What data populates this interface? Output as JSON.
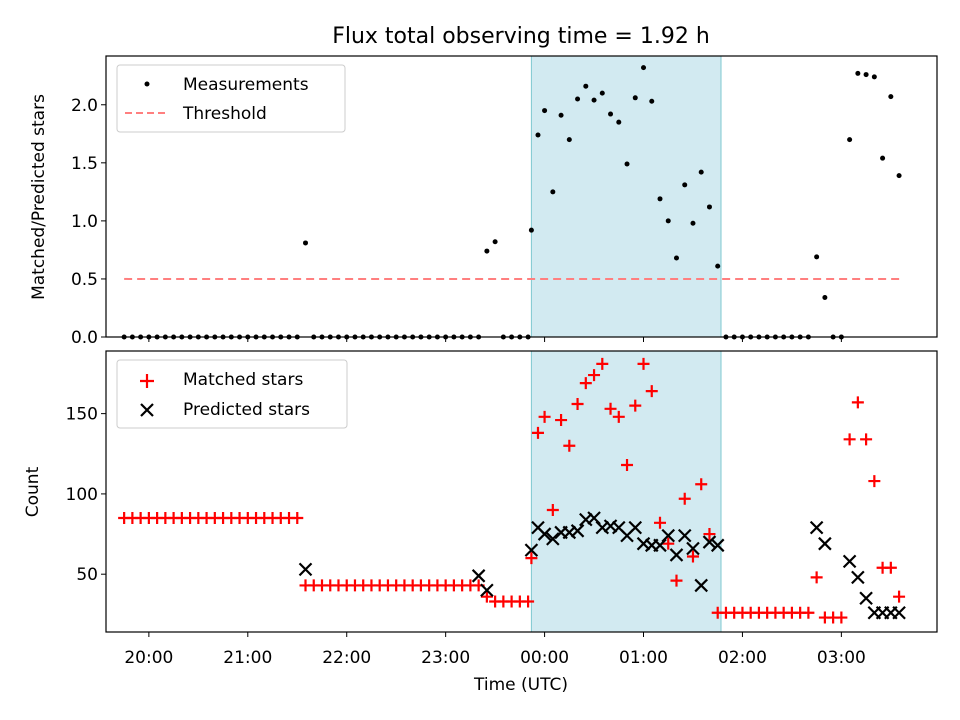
{
  "title": "Flux total observing time = 1.92 h",
  "colors": {
    "measurement": "#000000",
    "threshold": "#ff7f7f",
    "matched": "#ff0000",
    "predicted": "#000000",
    "shade": "#add8e6"
  },
  "chart_data": [
    {
      "type": "scatter",
      "ylabel": "Matched/Predicted stars",
      "xlabel": "",
      "xlim": [
        "19:34",
        "03:58"
      ],
      "ylim": [
        0,
        2.42
      ],
      "yticks": [
        0.0,
        0.5,
        1.0,
        1.5,
        2.0
      ],
      "ytick_labels": [
        "0.0",
        "0.5",
        "1.0",
        "1.5",
        "2.0"
      ],
      "xticks": [
        "20:00",
        "21:00",
        "22:00",
        "23:00",
        "00:00",
        "01:00",
        "02:00",
        "03:00"
      ],
      "shaded_interval": [
        "23:52",
        "01:47"
      ],
      "legend": {
        "position": "upper-left",
        "entries": [
          "Measurements",
          "Threshold"
        ]
      },
      "threshold": {
        "name": "Threshold",
        "value": 0.5,
        "x": [
          "19:45",
          "03:38"
        ]
      },
      "series": [
        {
          "name": "Measurements",
          "marker": "dot",
          "x": [
            "19:45",
            "19:50",
            "19:55",
            "20:00",
            "20:05",
            "20:10",
            "20:15",
            "20:20",
            "20:25",
            "20:30",
            "20:35",
            "20:40",
            "20:45",
            "20:50",
            "20:55",
            "21:00",
            "21:05",
            "21:10",
            "21:15",
            "21:20",
            "21:25",
            "21:30",
            "21:35",
            "21:40",
            "21:45",
            "21:50",
            "21:55",
            "22:00",
            "22:05",
            "22:10",
            "22:15",
            "22:20",
            "22:25",
            "22:30",
            "22:35",
            "22:40",
            "22:45",
            "22:50",
            "22:55",
            "23:00",
            "23:05",
            "23:10",
            "23:15",
            "23:20",
            "23:25",
            "23:30",
            "23:35",
            "23:40",
            "23:45",
            "23:50",
            "23:52",
            "23:56",
            "00:00",
            "00:05",
            "00:10",
            "00:15",
            "00:20",
            "00:25",
            "00:30",
            "00:35",
            "00:40",
            "00:45",
            "00:50",
            "00:55",
            "01:00",
            "01:05",
            "01:10",
            "01:15",
            "01:20",
            "01:25",
            "01:30",
            "01:35",
            "01:40",
            "01:45",
            "01:50",
            "01:55",
            "02:00",
            "02:05",
            "02:10",
            "02:15",
            "02:20",
            "02:25",
            "02:30",
            "02:35",
            "02:40",
            "02:45",
            "02:50",
            "02:55",
            "03:00",
            "03:05",
            "03:10",
            "03:15",
            "03:20",
            "03:25",
            "03:30",
            "03:35"
          ],
          "y": [
            0,
            0,
            0,
            0,
            0,
            0,
            0,
            0,
            0,
            0,
            0,
            0,
            0,
            0,
            0,
            0,
            0,
            0,
            0,
            0,
            0,
            0,
            0.81,
            0,
            0,
            0,
            0,
            0,
            0,
            0,
            0,
            0,
            0,
            0,
            0,
            0,
            0,
            0,
            0,
            0,
            0,
            0,
            0,
            0,
            0.74,
            0.82,
            0,
            0,
            0,
            0,
            0.92,
            1.74,
            1.95,
            1.25,
            1.91,
            1.7,
            2.05,
            2.16,
            2.04,
            2.1,
            1.92,
            1.85,
            1.49,
            2.06,
            2.32,
            2.03,
            1.19,
            1.0,
            0.68,
            1.31,
            0.98,
            1.42,
            1.12,
            0.61,
            0,
            0,
            0,
            0,
            0,
            0,
            0,
            0,
            0,
            0,
            0,
            0.69,
            0.34,
            0,
            0,
            1.7,
            2.27,
            2.26,
            2.24,
            1.54,
            2.07,
            1.39
          ]
        }
      ]
    },
    {
      "type": "scatter",
      "ylabel": "Count",
      "xlabel": "Time (UTC)",
      "xlim": [
        "19:34",
        "03:58"
      ],
      "ylim": [
        14,
        189
      ],
      "yticks": [
        50,
        100,
        150
      ],
      "ytick_labels": [
        "50",
        "100",
        "150"
      ],
      "xticks": [
        "20:00",
        "21:00",
        "22:00",
        "23:00",
        "00:00",
        "01:00",
        "02:00",
        "03:00"
      ],
      "xtick_labels": [
        "20:00",
        "21:00",
        "22:00",
        "23:00",
        "00:00",
        "01:00",
        "02:00",
        "03:00"
      ],
      "shaded_interval": [
        "23:52",
        "01:47"
      ],
      "legend": {
        "position": "upper-left",
        "entries": [
          "Matched stars",
          "Predicted stars"
        ]
      },
      "series": [
        {
          "name": "Matched stars",
          "marker": "plus",
          "x": [
            "19:45",
            "19:50",
            "19:55",
            "20:00",
            "20:05",
            "20:10",
            "20:15",
            "20:20",
            "20:25",
            "20:30",
            "20:35",
            "20:40",
            "20:45",
            "20:50",
            "20:55",
            "21:00",
            "21:05",
            "21:10",
            "21:15",
            "21:20",
            "21:25",
            "21:30",
            "21:35",
            "21:40",
            "21:45",
            "21:50",
            "21:55",
            "22:00",
            "22:05",
            "22:10",
            "22:15",
            "22:20",
            "22:25",
            "22:30",
            "22:35",
            "22:40",
            "22:45",
            "22:50",
            "22:55",
            "23:00",
            "23:05",
            "23:10",
            "23:15",
            "23:20",
            "23:25",
            "23:30",
            "23:35",
            "23:40",
            "23:45",
            "23:50",
            "23:52",
            "23:56",
            "00:00",
            "00:05",
            "00:10",
            "00:15",
            "00:20",
            "00:25",
            "00:30",
            "00:35",
            "00:40",
            "00:45",
            "00:50",
            "00:55",
            "01:00",
            "01:05",
            "01:10",
            "01:15",
            "01:20",
            "01:25",
            "01:30",
            "01:35",
            "01:40",
            "01:45",
            "01:50",
            "01:55",
            "02:00",
            "02:05",
            "02:10",
            "02:15",
            "02:20",
            "02:25",
            "02:30",
            "02:35",
            "02:40",
            "02:45",
            "02:50",
            "02:55",
            "03:00",
            "03:05",
            "03:10",
            "03:15",
            "03:20",
            "03:25",
            "03:30",
            "03:35"
          ],
          "y": [
            85,
            85,
            85,
            85,
            85,
            85,
            85,
            85,
            85,
            85,
            85,
            85,
            85,
            85,
            85,
            85,
            85,
            85,
            85,
            85,
            85,
            85,
            43,
            43,
            43,
            43,
            43,
            43,
            43,
            43,
            43,
            43,
            43,
            43,
            43,
            43,
            43,
            43,
            43,
            43,
            43,
            43,
            43,
            43,
            36,
            33,
            33,
            33,
            33,
            33,
            60,
            138,
            148,
            90,
            146,
            130,
            156,
            169,
            174,
            181,
            153,
            148,
            118,
            155,
            181,
            164,
            82,
            69,
            46,
            97,
            61,
            106,
            75,
            26,
            26,
            26,
            26,
            26,
            26,
            26,
            26,
            26,
            26,
            26,
            26,
            48,
            23,
            23,
            23,
            134,
            157,
            134,
            108,
            54,
            54,
            36
          ]
        },
        {
          "name": "Predicted stars",
          "marker": "x",
          "x": [
            "21:35",
            "23:20",
            "23:25",
            "23:52",
            "23:56",
            "00:00",
            "00:05",
            "00:10",
            "00:15",
            "00:20",
            "00:25",
            "00:30",
            "00:35",
            "00:40",
            "00:45",
            "00:50",
            "00:55",
            "01:00",
            "01:05",
            "01:10",
            "01:15",
            "01:20",
            "01:25",
            "01:30",
            "01:35",
            "01:40",
            "01:45",
            "02:45",
            "02:50",
            "03:05",
            "03:10",
            "03:15",
            "03:20",
            "03:25",
            "03:30",
            "03:35"
          ],
          "y": [
            53,
            49,
            40,
            65,
            79,
            75,
            72,
            76,
            76,
            77,
            84,
            85,
            79,
            80,
            79,
            74,
            79,
            69,
            68,
            68,
            74,
            62,
            74,
            66,
            43,
            70,
            68,
            79,
            69,
            58,
            48,
            35,
            26,
            26,
            26,
            26
          ]
        }
      ]
    }
  ]
}
